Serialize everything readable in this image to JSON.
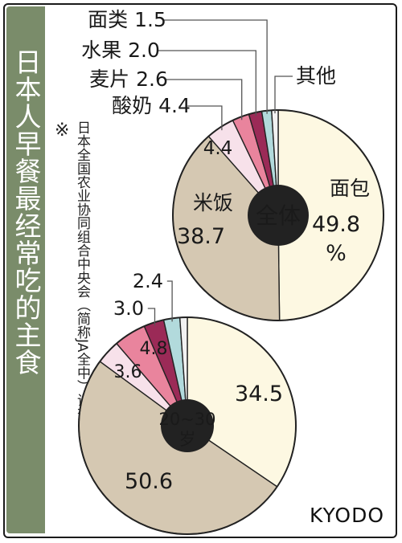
{
  "title": "日本人早餐最经常吃的主食",
  "note_mark": "※",
  "note": "日本全国农业协同组合中央会（简称JA全中）调查",
  "credit": "KYODO",
  "colors": {
    "bread": "#fdf8e2",
    "rice": "#d5c8b2",
    "yogurt": "#f7e1ea",
    "cereal": "#e9849d",
    "fruit": "#9b2a57",
    "noodles": "#b2dadc",
    "other": "#f2f2f2",
    "center": "#222222",
    "sidebar": "#7a8c6a"
  },
  "chart_data": [
    {
      "type": "pie",
      "title": "全体",
      "unit": "%",
      "slices": [
        {
          "label": "面包",
          "value": 49.8,
          "value_text": "49.8",
          "color": "#fdf8e2"
        },
        {
          "label": "米饭",
          "value": 38.7,
          "value_text": "38.7",
          "color": "#d5c8b2"
        },
        {
          "label": "酸奶",
          "value": 4.4,
          "value_text": "4.4",
          "color": "#f7e1ea"
        },
        {
          "label": "麦片",
          "value": 2.6,
          "value_text": "2.6",
          "color": "#e9849d"
        },
        {
          "label": "水果",
          "value": 2.0,
          "value_text": "2.0",
          "color": "#9b2a57"
        },
        {
          "label": "面类",
          "value": 1.5,
          "value_text": "1.5",
          "color": "#b2dadc"
        },
        {
          "label": "其他",
          "value": 1.0,
          "value_text": "",
          "color": "#f2f2f2"
        }
      ]
    },
    {
      "type": "pie",
      "title": "20~30岁",
      "slices": [
        {
          "label": "面包",
          "value": 34.5,
          "value_text": "34.5",
          "color": "#fdf8e2"
        },
        {
          "label": "米饭",
          "value": 50.6,
          "value_text": "50.6",
          "color": "#d5c8b2"
        },
        {
          "label": "酸奶",
          "value": 3.6,
          "value_text": "3.6",
          "color": "#f7e1ea"
        },
        {
          "label": "麦片",
          "value": 4.8,
          "value_text": "4.8",
          "color": "#e9849d"
        },
        {
          "label": "水果",
          "value": 3.0,
          "value_text": "3.0",
          "color": "#9b2a57"
        },
        {
          "label": "面类",
          "value": 2.4,
          "value_text": "2.4",
          "color": "#b2dadc"
        },
        {
          "label": "其他",
          "value": 1.1,
          "value_text": "",
          "color": "#f2f2f2"
        }
      ]
    }
  ]
}
